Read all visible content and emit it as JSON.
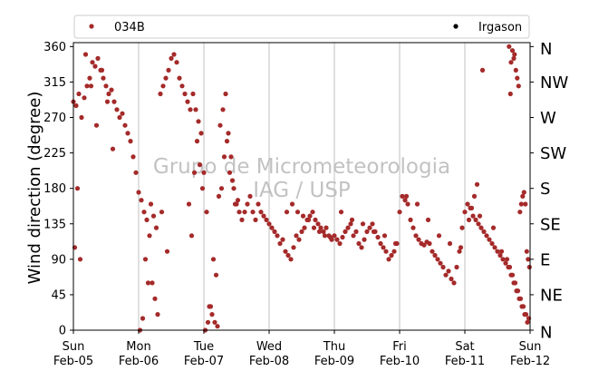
{
  "chart_data": {
    "type": "scatter",
    "ylabel": "Wind direction (degree)",
    "ylim": [
      0,
      365
    ],
    "yticks": [
      0,
      45,
      90,
      135,
      180,
      225,
      270,
      315,
      360
    ],
    "xlim": [
      "2017-02-05",
      "2017-02-12"
    ],
    "xticks": [
      {
        "date": "2017-02-05",
        "day": "Sun",
        "label": "Feb-05"
      },
      {
        "date": "2017-02-06",
        "day": "Mon",
        "label": "Feb-06"
      },
      {
        "date": "2017-02-07",
        "day": "Tue",
        "label": "Feb-07"
      },
      {
        "date": "2017-02-08",
        "day": "Wed",
        "label": "Feb-08"
      },
      {
        "date": "2017-02-09",
        "day": "Thu",
        "label": "Feb-09"
      },
      {
        "date": "2017-02-10",
        "day": "Fri",
        "label": "Feb-10"
      },
      {
        "date": "2017-02-11",
        "day": "Sat",
        "label": "Feb-11"
      },
      {
        "date": "2017-02-12",
        "day": "Sun",
        "label": "Feb-12"
      }
    ],
    "right_axis_labels": [
      "N",
      "NE",
      "E",
      "SE",
      "S",
      "SW",
      "W",
      "NW",
      "N"
    ],
    "grid": "vertical",
    "legend_placement": "top",
    "series": [
      {
        "name": "034B",
        "color": "#a52a2a",
        "x": [
          "2017-02-05T00:00",
          "2017-02-05T01:00",
          "2017-02-05T02:00",
          "2017-02-05T03:00",
          "2017-02-05T04:00",
          "2017-02-05T05:00",
          "2017-02-05T06:00",
          "2017-02-05T07:00",
          "2017-02-05T08:00",
          "2017-02-05T09:00",
          "2017-02-05T10:00",
          "2017-02-05T11:00",
          "2017-02-05T12:00",
          "2017-02-05T13:00",
          "2017-02-05T14:00",
          "2017-02-05T15:00",
          "2017-02-05T16:00",
          "2017-02-05T17:00",
          "2017-02-05T18:00",
          "2017-02-05T19:00",
          "2017-02-05T20:00",
          "2017-02-05T21:00",
          "2017-02-05T22:00",
          "2017-02-05T23:00",
          "2017-02-06T00:00",
          "2017-02-06T01:00",
          "2017-02-06T02:00",
          "2017-02-06T03:00",
          "2017-02-06T04:00",
          "2017-02-06T05:00",
          "2017-02-06T06:00",
          "2017-02-06T07:00",
          "2017-02-06T08:00",
          "2017-02-06T09:00",
          "2017-02-06T10:00",
          "2017-02-06T11:00",
          "2017-02-06T12:00",
          "2017-02-06T13:00",
          "2017-02-06T14:00",
          "2017-02-06T15:00",
          "2017-02-06T16:00",
          "2017-02-06T17:00",
          "2017-02-06T18:00",
          "2017-02-06T19:00",
          "2017-02-06T20:00",
          "2017-02-06T21:00",
          "2017-02-06T22:00",
          "2017-02-06T23:00",
          "2017-02-07T00:00",
          "2017-02-07T01:00",
          "2017-02-07T02:00",
          "2017-02-07T03:00",
          "2017-02-07T04:00",
          "2017-02-07T05:00",
          "2017-02-07T06:00",
          "2017-02-07T07:00",
          "2017-02-07T08:00",
          "2017-02-07T09:00",
          "2017-02-07T10:00",
          "2017-02-07T11:00",
          "2017-02-07T12:00",
          "2017-02-07T13:00",
          "2017-02-07T14:00",
          "2017-02-07T15:00",
          "2017-02-07T16:00",
          "2017-02-07T17:00",
          "2017-02-07T18:00",
          "2017-02-07T19:00",
          "2017-02-07T20:00",
          "2017-02-07T21:00",
          "2017-02-07T22:00",
          "2017-02-07T23:00",
          "2017-02-08T00:00",
          "2017-02-08T01:00",
          "2017-02-08T02:00",
          "2017-02-08T03:00",
          "2017-02-08T04:00",
          "2017-02-08T05:00",
          "2017-02-08T06:00",
          "2017-02-08T07:00",
          "2017-02-08T08:00",
          "2017-02-08T09:00",
          "2017-02-08T10:00",
          "2017-02-08T11:00",
          "2017-02-08T12:00",
          "2017-02-08T13:00",
          "2017-02-08T14:00",
          "2017-02-08T15:00",
          "2017-02-08T16:00",
          "2017-02-08T17:00",
          "2017-02-08T18:00",
          "2017-02-08T19:00",
          "2017-02-08T20:00",
          "2017-02-08T21:00",
          "2017-02-08T22:00",
          "2017-02-08T23:00",
          "2017-02-09T00:00",
          "2017-02-09T01:00",
          "2017-02-09T02:00",
          "2017-02-09T03:00",
          "2017-02-09T04:00",
          "2017-02-09T05:00",
          "2017-02-09T06:00",
          "2017-02-09T07:00",
          "2017-02-09T08:00",
          "2017-02-09T09:00",
          "2017-02-09T10:00",
          "2017-02-09T11:00",
          "2017-02-09T12:00",
          "2017-02-09T13:00",
          "2017-02-09T14:00",
          "2017-02-09T15:00",
          "2017-02-09T16:00",
          "2017-02-09T17:00",
          "2017-02-09T18:00",
          "2017-02-09T19:00",
          "2017-02-09T20:00",
          "2017-02-09T21:00",
          "2017-02-09T22:00",
          "2017-02-09T23:00",
          "2017-02-10T00:00",
          "2017-02-10T01:00",
          "2017-02-10T02:00",
          "2017-02-10T03:00",
          "2017-02-10T04:00",
          "2017-02-10T05:00",
          "2017-02-10T06:00",
          "2017-02-10T07:00",
          "2017-02-10T08:00",
          "2017-02-10T09:00",
          "2017-02-10T10:00",
          "2017-02-10T11:00",
          "2017-02-10T12:00",
          "2017-02-10T13:00",
          "2017-02-10T14:00",
          "2017-02-10T15:00",
          "2017-02-10T16:00",
          "2017-02-10T17:00",
          "2017-02-10T18:00",
          "2017-02-10T19:00",
          "2017-02-10T20:00",
          "2017-02-10T21:00",
          "2017-02-10T22:00",
          "2017-02-10T23:00",
          "2017-02-11T00:00",
          "2017-02-11T01:00",
          "2017-02-11T02:00",
          "2017-02-11T03:00",
          "2017-02-11T04:00",
          "2017-02-11T05:00",
          "2017-02-11T06:00",
          "2017-02-11T07:00",
          "2017-02-11T08:00",
          "2017-02-11T09:00",
          "2017-02-11T10:00",
          "2017-02-11T11:00",
          "2017-02-11T12:00",
          "2017-02-11T13:00",
          "2017-02-11T14:00",
          "2017-02-11T15:00",
          "2017-02-11T16:00",
          "2017-02-11T17:00",
          "2017-02-11T18:00",
          "2017-02-11T19:00",
          "2017-02-11T20:00",
          "2017-02-11T21:00",
          "2017-02-11T22:00",
          "2017-02-11T23:00",
          "2017-02-05T00:30",
          "2017-02-05T01:30",
          "2017-02-05T02:30",
          "2017-02-05T04:30",
          "2017-02-05T06:30",
          "2017-02-05T08:30",
          "2017-02-05T10:30",
          "2017-02-05T12:30",
          "2017-02-05T14:30",
          "2017-02-06T00:30",
          "2017-02-06T01:30",
          "2017-02-06T02:30",
          "2017-02-06T03:30",
          "2017-02-06T04:30",
          "2017-02-06T05:30",
          "2017-02-06T06:30",
          "2017-02-06T08:30",
          "2017-02-06T10:30",
          "2017-02-06T18:30",
          "2017-02-06T19:30",
          "2017-02-06T20:30",
          "2017-02-06T21:30",
          "2017-02-06T22:30",
          "2017-02-06T23:30",
          "2017-02-07T00:30",
          "2017-02-07T01:30",
          "2017-02-07T02:30",
          "2017-02-07T03:30",
          "2017-02-07T04:30",
          "2017-02-07T05:30",
          "2017-02-07T06:30",
          "2017-02-07T07:30",
          "2017-02-07T08:30",
          "2017-02-07T09:30",
          "2017-02-07T10:30",
          "2017-02-07T11:30",
          "2017-02-07T12:30",
          "2017-02-08T06:30",
          "2017-02-08T08:30",
          "2017-02-08T10:30",
          "2017-02-08T12:30",
          "2017-02-08T14:30",
          "2017-02-08T16:30",
          "2017-02-08T18:30",
          "2017-02-08T20:30",
          "2017-02-08T22:30",
          "2017-02-09T02:30",
          "2017-02-09T06:30",
          "2017-02-09T10:30",
          "2017-02-09T14:30",
          "2017-02-09T18:30",
          "2017-02-09T22:30",
          "2017-02-10T02:30",
          "2017-02-10T06:30",
          "2017-02-10T10:30",
          "2017-02-10T14:30",
          "2017-02-10T18:30",
          "2017-02-10T22:30",
          "2017-02-11T01:30",
          "2017-02-11T02:30",
          "2017-02-11T03:30",
          "2017-02-11T04:30",
          "2017-02-11T05:30",
          "2017-02-11T06:30",
          "2017-02-11T10:30",
          "2017-02-11T13:30",
          "2017-02-11T15:30",
          "2017-02-11T16:30",
          "2017-02-11T17:30",
          "2017-02-11T18:30",
          "2017-02-11T19:30",
          "2017-02-11T20:30",
          "2017-02-11T21:30",
          "2017-02-11T22:30",
          "2017-02-11T23:30",
          "2017-02-11T17:00",
          "2017-02-11T17:30",
          "2017-02-11T18:00",
          "2017-02-11T18:15",
          "2017-02-11T18:45",
          "2017-02-11T19:15",
          "2017-02-11T19:45",
          "2017-02-11T16:45",
          "2017-02-11T16:15",
          "2017-02-11T20:15",
          "2017-02-11T20:45",
          "2017-02-11T21:15",
          "2017-02-11T21:45",
          "2017-02-11T22:15",
          "2017-02-11T22:45",
          "2017-02-11T23:15",
          "2017-02-11T23:45"
        ],
        "y": [
          290,
          285,
          300,
          270,
          295,
          310,
          320,
          340,
          335,
          345,
          330,
          320,
          310,
          300,
          305,
          290,
          280,
          270,
          275,
          260,
          250,
          240,
          220,
          200,
          175,
          165,
          150,
          140,
          120,
          60,
          40,
          20,
          300,
          310,
          320,
          330,
          345,
          350,
          340,
          320,
          310,
          300,
          290,
          280,
          300,
          280,
          265,
          250,
          200,
          150,
          30,
          20,
          10,
          5,
          260,
          280,
          300,
          250,
          220,
          180,
          160,
          150,
          140,
          150,
          160,
          170,
          150,
          140,
          160,
          150,
          145,
          140,
          135,
          130,
          125,
          120,
          110,
          115,
          100,
          95,
          90,
          105,
          120,
          115,
          125,
          130,
          140,
          145,
          150,
          140,
          135,
          130,
          125,
          130,
          120,
          115,
          120,
          115,
          110,
          118,
          125,
          130,
          135,
          120,
          125,
          110,
          105,
          115,
          125,
          130,
          135,
          125,
          118,
          110,
          105,
          100,
          90,
          95,
          100,
          110,
          150,
          170,
          165,
          160,
          140,
          130,
          120,
          115,
          110,
          108,
          112,
          110,
          100,
          95,
          90,
          85,
          80,
          70,
          75,
          65,
          60,
          80,
          100,
          130,
          150,
          160,
          155,
          145,
          140,
          135,
          130,
          125,
          120,
          115,
          110,
          105,
          100,
          95,
          90,
          85,
          80,
          70,
          60,
          50,
          40,
          30,
          20,
          10,
          105,
          180,
          90,
          350,
          310,
          260,
          330,
          290,
          230,
          0,
          15,
          90,
          60,
          160,
          145,
          130,
          150,
          100,
          160,
          120,
          200,
          240,
          210,
          180,
          0,
          10,
          30,
          90,
          70,
          170,
          180,
          220,
          240,
          200,
          190,
          160,
          165,
          150,
          160,
          150,
          145,
          140,
          130,
          125,
          120,
          118,
          150,
          140,
          135,
          125,
          120,
          110,
          170,
          160,
          140,
          120,
          110,
          105,
          140,
          155,
          170,
          185,
          145,
          330,
          130,
          100,
          90,
          80,
          70,
          60,
          50,
          40,
          30,
          20,
          15,
          340,
          355,
          345,
          350,
          330,
          320,
          310,
          300,
          360,
          150,
          160,
          170,
          175,
          160,
          100,
          90,
          80
        ]
      },
      {
        "name": "Irgason",
        "color": "#000000",
        "x": [],
        "y": []
      }
    ],
    "watermark": [
      "Grupo de Micrometeorologia",
      "IAG / USP"
    ]
  }
}
